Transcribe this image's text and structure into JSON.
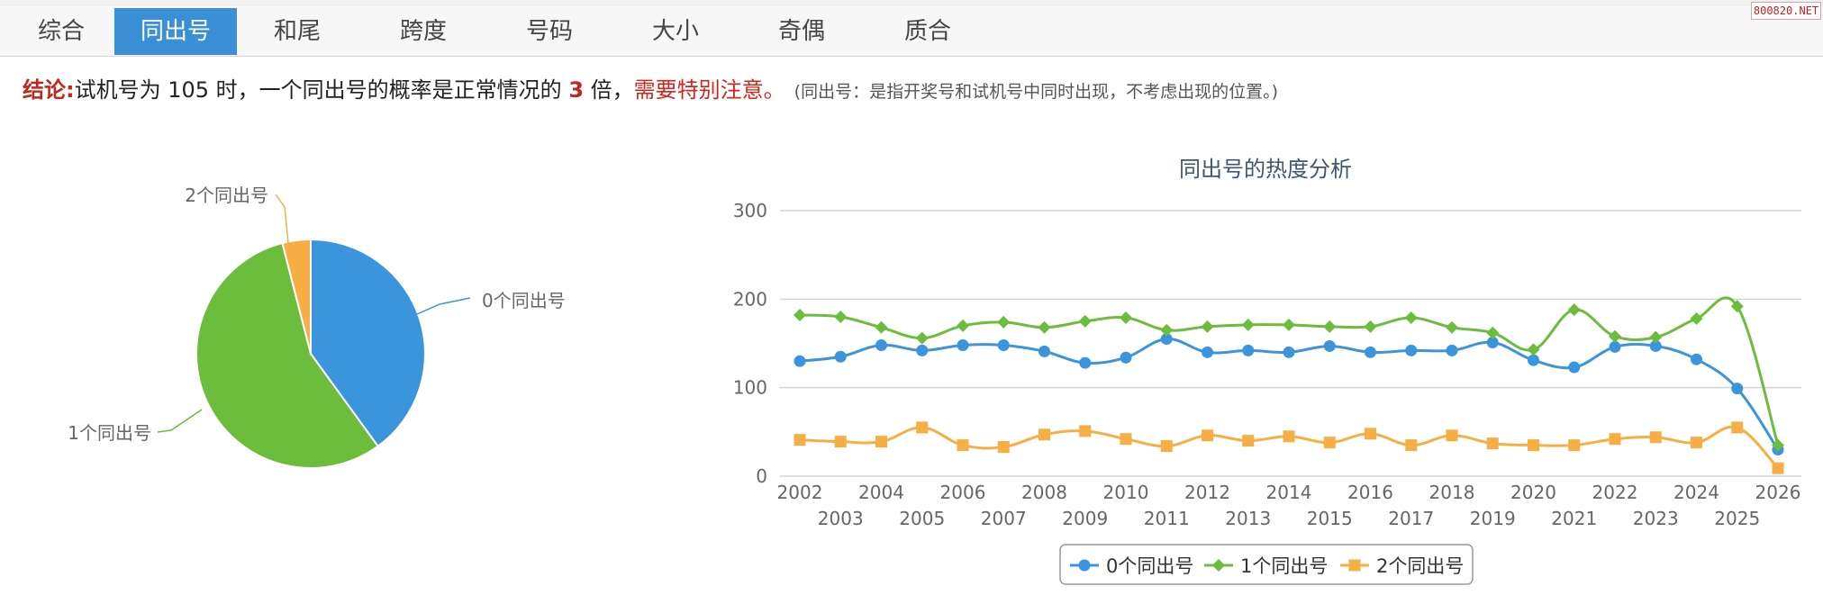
{
  "tabs": [
    {
      "label": "综合",
      "active": false
    },
    {
      "label": "同出号",
      "active": true
    },
    {
      "label": "和尾",
      "active": false
    },
    {
      "label": "跨度",
      "active": false
    },
    {
      "label": "号码",
      "active": false
    },
    {
      "label": "大小",
      "active": false
    },
    {
      "label": "奇偶",
      "active": false
    },
    {
      "label": "质合",
      "active": false
    }
  ],
  "watermark": "800820.NET",
  "conclusion": {
    "label": "结论:",
    "text1": "试机号为 105 时，一个同出号的概率是正常情况的 ",
    "multiple": "3",
    "text2": " 倍，",
    "warning": "需要特别注意。",
    "note": "(同出号：是指开奖号和试机号中同时出现，不考虑出现的位置。)"
  },
  "colors": {
    "zero": "#3a95dc",
    "one": "#6cbd3b",
    "two": "#f6ae45",
    "tab_active": "#3b8fd6",
    "accent_red": "#c0281e"
  },
  "chart_data": [
    {
      "type": "pie",
      "categories": [
        "0个同出号",
        "1个同出号",
        "2个同出号"
      ],
      "values": [
        40,
        56,
        4
      ],
      "colors": [
        "#3a95dc",
        "#6cbd3b",
        "#f6ae45"
      ]
    },
    {
      "type": "line",
      "title": "同出号的热度分析",
      "categories": [
        "2002",
        "2003",
        "2004",
        "2005",
        "2006",
        "2007",
        "2008",
        "2009",
        "2010",
        "2011",
        "2012",
        "2013",
        "2014",
        "2015",
        "2016",
        "2017",
        "2018",
        "2019",
        "2020",
        "2021",
        "2022",
        "2023",
        "2024",
        "2025",
        "2026"
      ],
      "ylim": [
        0,
        300
      ],
      "yticks": [
        "0",
        "100",
        "200",
        "300"
      ],
      "grid": true,
      "legend_position": "bottom-center",
      "series": [
        {
          "name": "0个同出号",
          "color": "#3a95dc",
          "marker": "circle",
          "values": [
            130,
            135,
            148,
            142,
            148,
            148,
            141,
            128,
            134,
            155,
            140,
            142,
            140,
            147,
            140,
            142,
            142,
            151,
            131,
            123,
            146,
            147,
            132,
            99,
            30
          ]
        },
        {
          "name": "1个同出号",
          "color": "#6cbd3b",
          "marker": "diamond",
          "values": [
            182,
            180,
            168,
            156,
            170,
            174,
            168,
            175,
            179,
            165,
            169,
            171,
            171,
            169,
            169,
            179,
            168,
            162,
            143,
            188,
            158,
            157,
            178,
            192,
            35
          ]
        },
        {
          "name": "2个同出号",
          "color": "#f6ae45",
          "marker": "square",
          "values": [
            41,
            39,
            39,
            55,
            35,
            33,
            47,
            51,
            42,
            34,
            46,
            40,
            45,
            38,
            48,
            35,
            46,
            37,
            35,
            35,
            42,
            44,
            38,
            55,
            9
          ]
        }
      ]
    }
  ]
}
